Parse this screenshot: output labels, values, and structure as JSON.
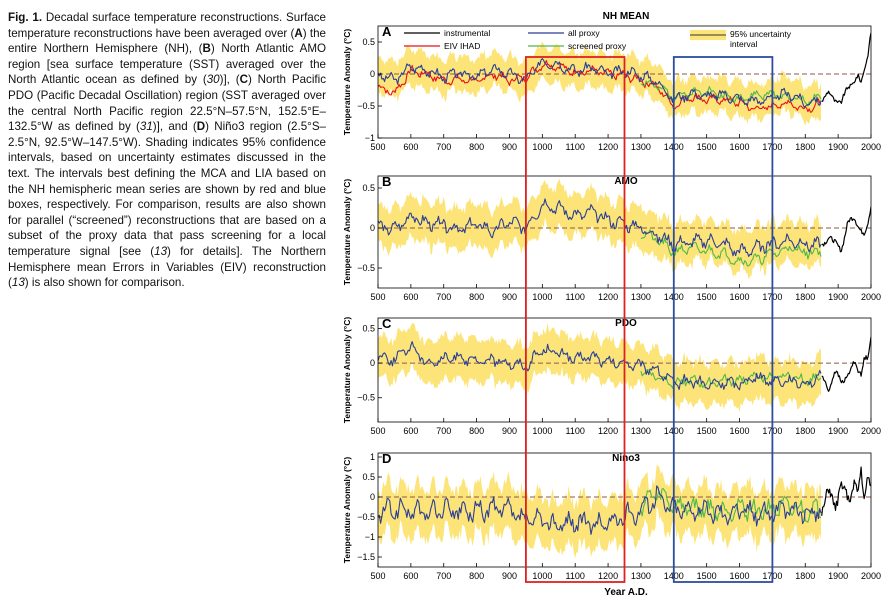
{
  "caption": {
    "lead": "Fig. 1.",
    "parts": [
      {
        "t": " Decadal surface temperature reconstructions. Surface temperature reconstructions have been averaged over ("
      },
      {
        "t": "A",
        "b": true
      },
      {
        "t": ") the entire Northern Hemisphere (NH), ("
      },
      {
        "t": "B",
        "b": true
      },
      {
        "t": ") North Atlantic AMO region [sea surface temperature (SST) averaged over the North Atlantic ocean as defined by ("
      },
      {
        "t": "30",
        "i": true
      },
      {
        "t": ")], ("
      },
      {
        "t": "C",
        "b": true
      },
      {
        "t": ") North Pacific PDO (Pacific Decadal Oscillation) region (SST averaged over the central North Pacific region 22.5°N–57.5°N, 152.5°E–132.5°W as defined by ("
      },
      {
        "t": "31",
        "i": true
      },
      {
        "t": ")], and ("
      },
      {
        "t": "D",
        "b": true
      },
      {
        "t": ") Niño3 region (2.5°S–2.5°N, 92.5°W–147.5°W). Shading indicates 95% confidence intervals, based on uncertainty estimates discussed in the text. The intervals best defining the MCA and LIA based on the NH hemispheric mean series are shown by red and blue boxes, respectively. For comparison, results are also shown for parallel (“screened”) reconstructions that are based on a subset of the proxy data that pass screening for a local temperature signal [see ("
      },
      {
        "t": "13",
        "i": true
      },
      {
        "t": ") for details]. The Northern Hemisphere mean Errors in Variables (EIV) reconstruction ("
      },
      {
        "t": "13",
        "i": true
      },
      {
        "t": ") is also shown for comparison."
      }
    ]
  },
  "colors": {
    "band": "#fce478",
    "instrumental": "#000000",
    "eiv": "#e8101a",
    "all_proxy": "#2b3f95",
    "screened": "#52b848",
    "mca_box": "#e02020",
    "lia_box": "#2c4d9e",
    "zero_line": "#8c5a4a"
  },
  "legend": {
    "instrumental": "instrumental",
    "eiv": "EIV IHAD",
    "all_proxy": "all proxy",
    "screened": "screened proxy",
    "band": "95% uncertainty interval"
  },
  "x_axis": {
    "label": "Year A.D.",
    "range": [
      500,
      2000
    ],
    "ticks": [
      500,
      600,
      700,
      800,
      900,
      1000,
      1100,
      1200,
      1300,
      1400,
      1500,
      1600,
      1700,
      1800,
      1900,
      2000
    ]
  },
  "ylabel": "Temperature Anomaly (°C)",
  "boxes": {
    "mca": {
      "from": 950,
      "to": 1250
    },
    "lia": {
      "from": 1400,
      "to": 1700
    }
  },
  "chart_data": [
    {
      "type": "line",
      "panel": "A",
      "title": "NH MEAN",
      "ylim": [
        -1,
        0.75
      ],
      "yticks": [
        -1,
        -0.5,
        0,
        0.5
      ],
      "ytick_labels": [
        "−1",
        "−0.5",
        "0",
        "0.5"
      ],
      "band_halfwidth": 0.27,
      "reconstruction": {
        "x": [
          500,
          550,
          600,
          650,
          700,
          750,
          800,
          850,
          900,
          950,
          1000,
          1050,
          1100,
          1150,
          1200,
          1250,
          1300,
          1350,
          1400,
          1450,
          1500,
          1550,
          1600,
          1650,
          1700,
          1750,
          1800,
          1850
        ],
        "y": [
          0.0,
          -0.1,
          0.12,
          0.05,
          -0.05,
          0.02,
          -0.05,
          0.08,
          0.0,
          -0.1,
          0.2,
          0.15,
          0.05,
          0.1,
          0.0,
          0.05,
          -0.02,
          -0.12,
          -0.4,
          -0.3,
          -0.35,
          -0.32,
          -0.4,
          -0.42,
          -0.38,
          -0.3,
          -0.45,
          -0.4
        ]
      },
      "screened": {
        "x": [
          1300,
          1350,
          1400,
          1450,
          1500,
          1550,
          1600,
          1650,
          1700,
          1750,
          1800,
          1850
        ],
        "y": [
          -0.1,
          -0.2,
          -0.35,
          -0.3,
          -0.25,
          -0.35,
          -0.38,
          -0.33,
          -0.32,
          -0.35,
          -0.42,
          -0.38
        ]
      },
      "eiv": {
        "x": [
          500,
          550,
          600,
          650,
          700,
          750,
          800,
          850,
          900,
          950,
          1000,
          1050,
          1100,
          1150,
          1200,
          1250,
          1300,
          1350,
          1400,
          1450,
          1500,
          1550,
          1600,
          1650,
          1700,
          1750,
          1800,
          1850
        ],
        "y": [
          -0.2,
          -0.3,
          0.05,
          0.0,
          -0.1,
          -0.08,
          -0.12,
          0.0,
          -0.1,
          -0.05,
          0.15,
          0.12,
          0.02,
          0.05,
          0.0,
          -0.02,
          -0.1,
          -0.2,
          -0.5,
          -0.35,
          -0.4,
          -0.4,
          -0.45,
          -0.55,
          -0.5,
          -0.45,
          -0.55,
          -0.45
        ]
      },
      "instrumental": {
        "x": [
          1850,
          1870,
          1890,
          1910,
          1930,
          1950,
          1960,
          1970,
          1980,
          1990,
          2000
        ],
        "y": [
          -0.4,
          -0.3,
          -0.4,
          -0.45,
          -0.2,
          -0.1,
          -0.05,
          -0.15,
          0.1,
          0.3,
          0.65
        ]
      }
    },
    {
      "type": "line",
      "panel": "B",
      "title": "AMO",
      "ylim": [
        -0.75,
        0.65
      ],
      "yticks": [
        -0.5,
        0,
        0.5
      ],
      "ytick_labels": [
        "−0.5",
        "0",
        "0.5"
      ],
      "band_halfwidth": 0.26,
      "reconstruction": {
        "x": [
          500,
          550,
          600,
          650,
          700,
          750,
          800,
          850,
          900,
          950,
          1000,
          1050,
          1100,
          1150,
          1200,
          1250,
          1300,
          1350,
          1400,
          1450,
          1500,
          1550,
          1600,
          1650,
          1700,
          1750,
          1800,
          1850
        ],
        "y": [
          0.02,
          -0.02,
          0.15,
          0.05,
          0.05,
          -0.02,
          0.05,
          -0.05,
          0.08,
          0.0,
          0.3,
          0.25,
          0.15,
          0.2,
          0.1,
          0.05,
          0.0,
          -0.1,
          -0.2,
          -0.18,
          -0.15,
          -0.2,
          -0.3,
          -0.25,
          -0.2,
          -0.15,
          -0.2,
          -0.22
        ]
      },
      "screened": {
        "x": [
          1300,
          1350,
          1400,
          1450,
          1500,
          1550,
          1600,
          1650,
          1700,
          1750,
          1800,
          1850
        ],
        "y": [
          -0.05,
          -0.15,
          -0.3,
          -0.25,
          -0.28,
          -0.32,
          -0.42,
          -0.4,
          -0.32,
          -0.25,
          -0.3,
          -0.3
        ]
      },
      "instrumental": {
        "x": [
          1850,
          1870,
          1890,
          1910,
          1930,
          1950,
          1960,
          1970,
          1980,
          1990,
          2000
        ],
        "y": [
          -0.22,
          -0.1,
          -0.2,
          -0.25,
          0.05,
          0.15,
          0.05,
          -0.05,
          -0.1,
          0.05,
          0.3
        ]
      }
    },
    {
      "type": "line",
      "panel": "C",
      "title": "PDO",
      "ylim": [
        -0.85,
        0.65
      ],
      "yticks": [
        -0.5,
        0,
        0.5
      ],
      "ytick_labels": [
        "−0.5",
        "0",
        "0.5"
      ],
      "band_halfwidth": 0.3,
      "reconstruction": {
        "x": [
          500,
          550,
          600,
          650,
          700,
          750,
          800,
          850,
          900,
          950,
          1000,
          1050,
          1100,
          1150,
          1200,
          1250,
          1300,
          1350,
          1400,
          1450,
          1500,
          1550,
          1600,
          1650,
          1700,
          1750,
          1800,
          1850
        ],
        "y": [
          0.1,
          0.05,
          0.25,
          0.0,
          0.05,
          0.1,
          0.0,
          0.05,
          0.0,
          -0.05,
          0.2,
          0.15,
          0.05,
          0.1,
          0.0,
          0.0,
          -0.05,
          -0.1,
          -0.3,
          -0.25,
          -0.32,
          -0.28,
          -0.3,
          -0.2,
          -0.25,
          -0.25,
          -0.3,
          -0.2
        ]
      },
      "screened": {
        "x": [
          1300,
          1350,
          1400,
          1450,
          1500,
          1550,
          1600,
          1650,
          1700,
          1750,
          1800,
          1850
        ],
        "y": [
          -0.1,
          -0.2,
          -0.28,
          -0.25,
          -0.3,
          -0.25,
          -0.25,
          -0.2,
          -0.22,
          -0.18,
          -0.25,
          -0.2
        ]
      },
      "instrumental": {
        "x": [
          1850,
          1870,
          1890,
          1910,
          1930,
          1950,
          1960,
          1970,
          1980,
          1990,
          2000
        ],
        "y": [
          -0.2,
          -0.4,
          -0.1,
          -0.3,
          -0.15,
          0.0,
          -0.1,
          -0.15,
          0.1,
          0.05,
          0.35
        ]
      }
    },
    {
      "type": "line",
      "panel": "D",
      "title": "Nino3",
      "ylim": [
        -1.75,
        1.1
      ],
      "yticks": [
        -1.5,
        -1,
        -0.5,
        0,
        0.5,
        1
      ],
      "ytick_labels": [
        "−1.5",
        "−1",
        "−0.5",
        "0",
        "0.5",
        "1"
      ],
      "band_halfwidth": 0.6,
      "reconstruction": {
        "x": [
          500,
          550,
          600,
          650,
          700,
          750,
          800,
          850,
          900,
          950,
          1000,
          1050,
          1100,
          1150,
          1200,
          1250,
          1300,
          1350,
          1400,
          1450,
          1500,
          1550,
          1600,
          1650,
          1700,
          1750,
          1800,
          1850
        ],
        "y": [
          -0.4,
          -0.3,
          -0.35,
          -0.4,
          -0.3,
          -0.4,
          -0.35,
          -0.3,
          -0.35,
          -0.6,
          -0.6,
          -0.7,
          -0.6,
          -0.7,
          -0.65,
          -0.5,
          -0.3,
          0.0,
          -0.3,
          -0.3,
          -0.35,
          -0.4,
          -0.3,
          -0.4,
          -0.35,
          -0.3,
          -0.4,
          -0.35
        ]
      },
      "screened": {
        "x": [
          1300,
          1350,
          1400,
          1450,
          1500,
          1550,
          1600,
          1650,
          1700,
          1750,
          1800,
          1850
        ],
        "y": [
          -0.2,
          0.1,
          -0.2,
          -0.25,
          -0.3,
          -0.35,
          -0.25,
          -0.35,
          -0.3,
          -0.25,
          -0.35,
          -0.3
        ]
      },
      "instrumental": {
        "x": [
          1850,
          1870,
          1890,
          1910,
          1930,
          1950,
          1960,
          1970,
          1980,
          1990,
          2000
        ],
        "y": [
          -0.3,
          0.1,
          -0.2,
          0.3,
          -0.1,
          0.4,
          0.0,
          0.6,
          -0.1,
          0.7,
          0.2
        ]
      }
    }
  ]
}
